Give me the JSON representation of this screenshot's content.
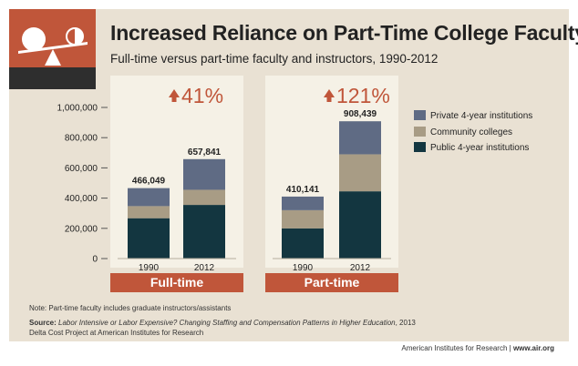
{
  "header": {
    "title": "Increased Reliance on Part-Time College Faculty",
    "subtitle": "Full-time versus part-time faculty and instructors, 1990-2012"
  },
  "colors": {
    "background": "#e9e1d3",
    "panel": "#f5f1e6",
    "accent": "#c0563a",
    "private": "#5f6b84",
    "community": "#a89c85",
    "public": "#133640",
    "logo_dark": "#2e2e2e"
  },
  "chart_data": {
    "type": "bar",
    "stacked": true,
    "panels": [
      {
        "name": "Full-time",
        "change_label": "41%",
        "categories": [
          "1990",
          "2012"
        ],
        "totals": [
          "466,049",
          "657,841"
        ]
      },
      {
        "name": "Part-time",
        "change_label": "121%",
        "categories": [
          "1990",
          "2012"
        ],
        "totals": [
          "410,141",
          "908,439"
        ]
      }
    ],
    "series": [
      {
        "name": "Public 4-year institutions",
        "color": "#133640",
        "values": [
          [
            267000,
            355000
          ],
          [
            200000,
            445000
          ]
        ]
      },
      {
        "name": "Community colleges",
        "color": "#a89c85",
        "values": [
          [
            80000,
            100000
          ],
          [
            120000,
            245000
          ]
        ]
      },
      {
        "name": "Private 4-year institutions",
        "color": "#5f6b84",
        "values": [
          [
            119049,
            202841
          ],
          [
            90141,
            218439
          ]
        ]
      }
    ],
    "legend_order": [
      "Private 4-year institutions",
      "Community colleges",
      "Public 4-year institutions"
    ],
    "legend_position": "right",
    "y_ticks": [
      "0",
      "200,000",
      "400,000",
      "600,000",
      "800,000",
      "1,000,000"
    ],
    "y_tick_values": [
      0,
      200000,
      400000,
      600000,
      800000,
      1000000
    ],
    "ylim": [
      0,
      1000000
    ],
    "grid": false
  },
  "notes": {
    "note": "Note: Part-time faculty includes graduate instructors/assistants",
    "source_label": "Source:",
    "source_title": "Labor Intensive or Labor Expensive? Changing Staffing and Compensation Patterns in Higher Education",
    "source_year": ", 2013",
    "source_line2": "Delta Cost Project at American Institutes for Research"
  },
  "footer": {
    "org": "American Institutes for Research",
    "separator": " | ",
    "url": "www.air.org"
  }
}
